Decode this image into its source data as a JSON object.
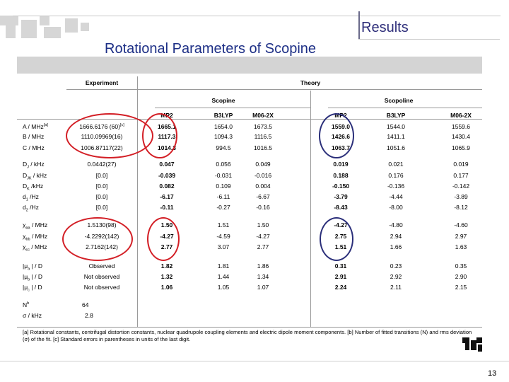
{
  "header": {
    "section": "Results",
    "title": "Rotational Parameters of Scopine"
  },
  "table": {
    "experiment_label": "Experiment",
    "theory_label": "Theory",
    "groups": [
      "Scopine",
      "Scopoline"
    ],
    "methods": [
      "MP2",
      "B3LYP",
      "M06-2X",
      "MP2",
      "B3LYP",
      "M06-2X"
    ],
    "rows": [
      {
        "label": "A / MHz",
        "sup": "[a]",
        "exp": "1666.6176 (60)",
        "sup_exp": "[c]",
        "vals": [
          "1665.1",
          "1654.0",
          "1673.5",
          "1559.0",
          "1544.0",
          "1559.6"
        ]
      },
      {
        "label": "B / MHz",
        "exp": "1110.09969(16)",
        "vals": [
          "1117.3",
          "1094.3",
          "1116.5",
          "1426.6",
          "1411.1",
          "1430.4"
        ]
      },
      {
        "label": "C / MHz",
        "exp": "1006.87117(22)",
        "vals": [
          "1014.3",
          "994.5",
          "1016.5",
          "1063.7",
          "1051.6",
          "1065.9"
        ]
      },
      {
        "label": "D",
        "sub": "J",
        "unit": " / kHz",
        "exp": "0.0442(27)",
        "vals": [
          "0.047",
          "0.056",
          "0.049",
          "0.019",
          "0.021",
          "0.019"
        ]
      },
      {
        "label": "D",
        "sub": "JK",
        "unit": " / kHz",
        "exp": "[0.0]",
        "vals": [
          "-0.039",
          "-0.031",
          "-0.016",
          "0.188",
          "0.176",
          "0.177"
        ]
      },
      {
        "label": "D",
        "sub": "K",
        "unit": " /kHz",
        "exp": "[0.0]",
        "vals": [
          "0.082",
          "0.109",
          "0.004",
          "-0.150",
          "-0.136",
          "-0.142"
        ]
      },
      {
        "label": "d",
        "sub": "1",
        "unit": " /Hz",
        "exp": "[0.0]",
        "vals": [
          "-6.17",
          "-6.11",
          "-6.67",
          "-3.79",
          "-4.44",
          "-3.89"
        ]
      },
      {
        "label": "d",
        "sub": "2",
        "unit": " /Hz",
        "exp": "[0.0]",
        "vals": [
          "-0.11",
          "-0.27",
          "-0.16",
          "-8.43",
          "-8.00",
          "-8.12"
        ]
      },
      {
        "label": "χ",
        "sub": "aa",
        "unit": " / MHz",
        "exp": "1.5130(98)",
        "vals": [
          "1.50",
          "1.51",
          "1.50",
          "-4.27",
          "-4.80",
          "-4.60"
        ]
      },
      {
        "label": "χ",
        "sub": "bb",
        "unit": " / MHz",
        "exp": "-4.2292(142)",
        "vals": [
          "-4.27",
          "-4.59",
          "-4.27",
          "2.75",
          "2.94",
          "2.97"
        ]
      },
      {
        "label": "χ",
        "sub": "cc",
        "unit": " / MHz",
        "exp": "2.7162(142)",
        "vals": [
          "2.77",
          "3.07",
          "2.77",
          "1.51",
          "1.66",
          "1.63"
        ]
      },
      {
        "label": "|μ",
        "sub": "a",
        "unit": " | / D",
        "exp": "Observed",
        "vals": [
          "1.82",
          "1.81",
          "1.86",
          "0.31",
          "0.23",
          "0.35"
        ]
      },
      {
        "label": "|μ",
        "sub": "b",
        "unit": " | / D",
        "exp": "Not observed",
        "vals": [
          "1.32",
          "1.44",
          "1.34",
          "2.91",
          "2.92",
          "2.90"
        ]
      },
      {
        "label": "|μ",
        "sub": "c",
        "unit": " | / D",
        "exp": "Not observed",
        "vals": [
          "1.06",
          "1.05",
          "1.07",
          "2.24",
          "2.11",
          "2.15"
        ]
      }
    ],
    "n_row": {
      "label": "N",
      "sup": "b",
      "exp": "64"
    },
    "sigma_row": {
      "label": "σ / kHz",
      "exp": "2.8"
    }
  },
  "footnote": "[a] Rotational constants, centrifugal distortion constants, nuclear quadrupole coupling elements and electric dipole moment components. [b] Number of fitted transitions (N) and rms deviation (σ) of the fit. [c] Standard errors in parentheses in units of the last digit.",
  "page_number": "13",
  "colors": {
    "title": "#1d2f86",
    "results": "#2e2e7a",
    "red_highlight": "#d31f26",
    "blue_highlight": "#2b2f7a"
  }
}
